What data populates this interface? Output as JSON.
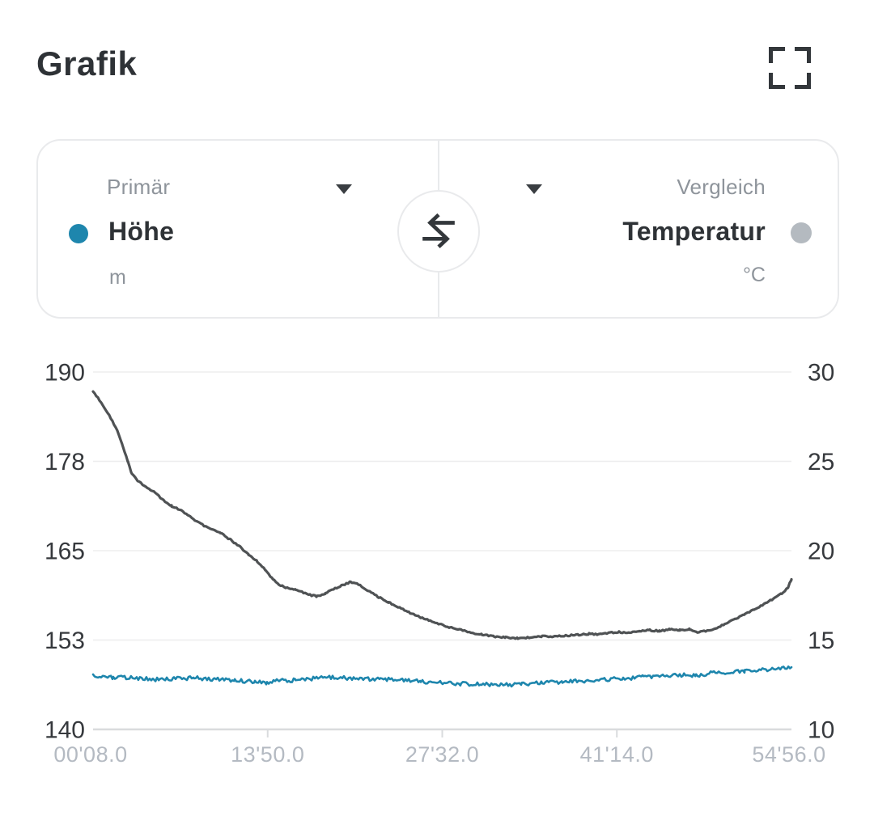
{
  "header": {
    "title": "Grafik"
  },
  "selector": {
    "primary": {
      "label": "Primär",
      "metric": "Höhe",
      "unit": "m",
      "dot_color": "#1e86ad"
    },
    "comparison": {
      "label": "Vergleich",
      "metric": "Temperatur",
      "unit": "°C",
      "dot_color": "#b4bac0"
    }
  },
  "chart_data": {
    "type": "line",
    "grid": true,
    "legend_position": "none",
    "x_axis": {
      "unit": "elapsed time mm'ss.s",
      "min": 8,
      "max": 3296,
      "tick_seconds": [
        8,
        830,
        1652,
        2474,
        3296
      ],
      "tick_labels": [
        "00'08.0",
        "13'50.0",
        "27'32.0",
        "41'14.0",
        "54'56.0"
      ]
    },
    "left_axis": {
      "name": "Höhe",
      "unit": "m",
      "min": 140,
      "max": 190,
      "tick_labels": [
        "190",
        "178",
        "165",
        "153",
        "140"
      ]
    },
    "right_axis": {
      "name": "Temperatur",
      "unit": "°C",
      "min": 10,
      "max": 30,
      "tick_labels": [
        "30",
        "25",
        "20",
        "15",
        "10"
      ]
    },
    "series": [
      {
        "name": "Temperatur",
        "axis": "right",
        "color": "#4f5254",
        "style": "noisy-line",
        "points": [
          [
            8,
            28.9
          ],
          [
            46,
            28.3
          ],
          [
            84,
            27.6
          ],
          [
            122,
            26.7
          ],
          [
            149,
            25.8
          ],
          [
            172,
            25.0
          ],
          [
            191,
            24.3
          ],
          [
            218,
            23.9
          ],
          [
            256,
            23.6
          ],
          [
            294,
            23.3
          ],
          [
            332,
            22.9
          ],
          [
            378,
            22.5
          ],
          [
            416,
            22.3
          ],
          [
            465,
            21.9
          ],
          [
            515,
            21.5
          ],
          [
            560,
            21.2
          ],
          [
            606,
            21.0
          ],
          [
            656,
            20.6
          ],
          [
            701,
            20.2
          ],
          [
            740,
            19.8
          ],
          [
            781,
            19.4
          ],
          [
            820,
            18.9
          ],
          [
            854,
            18.4
          ],
          [
            884,
            18.1
          ],
          [
            922,
            17.9
          ],
          [
            961,
            17.8
          ],
          [
            999,
            17.65
          ],
          [
            1037,
            17.5
          ],
          [
            1063,
            17.45
          ],
          [
            1102,
            17.6
          ],
          [
            1140,
            17.85
          ],
          [
            1178,
            18.05
          ],
          [
            1220,
            18.25
          ],
          [
            1258,
            18.1
          ],
          [
            1303,
            17.75
          ],
          [
            1353,
            17.4
          ],
          [
            1399,
            17.1
          ],
          [
            1444,
            16.85
          ],
          [
            1494,
            16.55
          ],
          [
            1543,
            16.3
          ],
          [
            1589,
            16.1
          ],
          [
            1639,
            15.9
          ],
          [
            1688,
            15.7
          ],
          [
            1741,
            15.55
          ],
          [
            1791,
            15.4
          ],
          [
            1840,
            15.3
          ],
          [
            1894,
            15.2
          ],
          [
            1951,
            15.15
          ],
          [
            2008,
            15.1
          ],
          [
            2065,
            15.15
          ],
          [
            2123,
            15.2
          ],
          [
            2180,
            15.2
          ],
          [
            2237,
            15.25
          ],
          [
            2294,
            15.3
          ],
          [
            2343,
            15.35
          ],
          [
            2389,
            15.3
          ],
          [
            2435,
            15.4
          ],
          [
            2484,
            15.45
          ],
          [
            2534,
            15.4
          ],
          [
            2580,
            15.5
          ],
          [
            2629,
            15.55
          ],
          [
            2675,
            15.5
          ],
          [
            2724,
            15.6
          ],
          [
            2770,
            15.55
          ],
          [
            2816,
            15.6
          ],
          [
            2854,
            15.45
          ],
          [
            2892,
            15.5
          ],
          [
            2938,
            15.65
          ],
          [
            2983,
            15.9
          ],
          [
            3029,
            16.15
          ],
          [
            3075,
            16.45
          ],
          [
            3121,
            16.7
          ],
          [
            3166,
            17.0
          ],
          [
            3208,
            17.3
          ],
          [
            3250,
            17.6
          ],
          [
            3265,
            17.75
          ],
          [
            3280,
            17.95
          ],
          [
            3296,
            18.4
          ]
        ]
      },
      {
        "name": "Höhe",
        "axis": "left",
        "color": "#1e86ad",
        "style": "noisy-line",
        "points": [
          [
            8,
            147.5
          ],
          [
            103,
            147.3
          ],
          [
            198,
            147.2
          ],
          [
            294,
            147.0
          ],
          [
            389,
            147.1
          ],
          [
            484,
            147.2
          ],
          [
            580,
            147.0
          ],
          [
            675,
            146.9
          ],
          [
            770,
            146.6
          ],
          [
            827,
            146.5
          ],
          [
            884,
            146.8
          ],
          [
            961,
            146.9
          ],
          [
            1037,
            147.1
          ],
          [
            1113,
            147.3
          ],
          [
            1189,
            147.2
          ],
          [
            1265,
            147.0
          ],
          [
            1361,
            147.1
          ],
          [
            1456,
            146.9
          ],
          [
            1551,
            146.7
          ],
          [
            1646,
            146.5
          ],
          [
            1741,
            146.4
          ],
          [
            1837,
            146.3
          ],
          [
            1932,
            146.2
          ],
          [
            2027,
            146.35
          ],
          [
            2123,
            146.5
          ],
          [
            2218,
            146.65
          ],
          [
            2313,
            146.8
          ],
          [
            2408,
            146.95
          ],
          [
            2504,
            147.1
          ],
          [
            2599,
            147.3
          ],
          [
            2694,
            147.5
          ],
          [
            2790,
            147.6
          ],
          [
            2847,
            147.5
          ],
          [
            2923,
            147.9
          ],
          [
            2999,
            148.0
          ],
          [
            3076,
            148.2
          ],
          [
            3152,
            148.35
          ],
          [
            3228,
            148.5
          ],
          [
            3296,
            148.7
          ]
        ]
      }
    ]
  },
  "colors": {
    "text_dark": "#2e3236",
    "text_gray": "#8e949b",
    "axis_label": "#36393d",
    "x_label": "#b4bac2",
    "gridline": "#ededee",
    "axis_line": "#d9dbdd",
    "panel_border": "#e9eaec"
  }
}
